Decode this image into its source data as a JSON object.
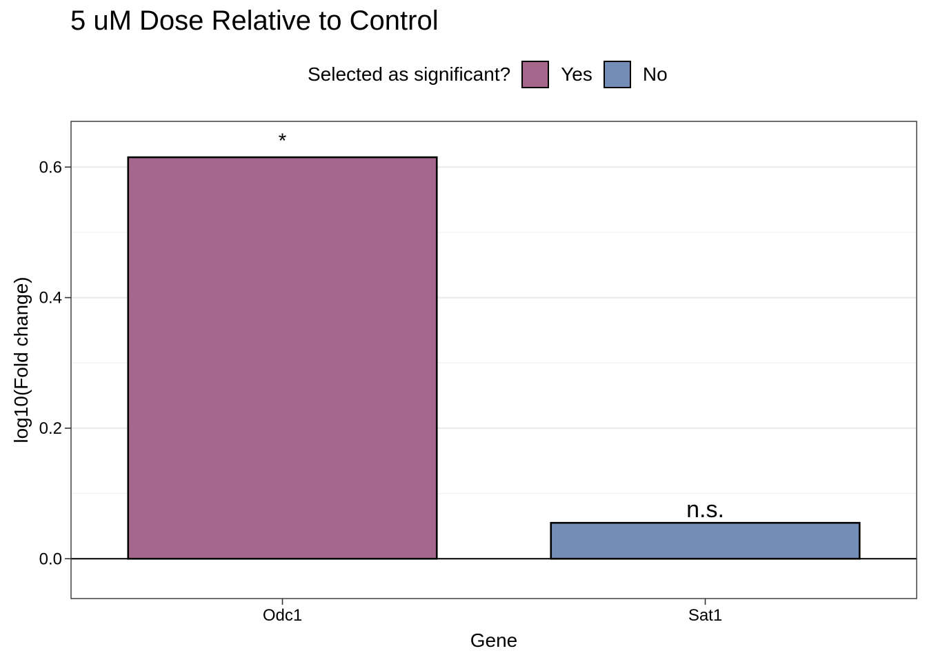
{
  "chart_data": {
    "type": "bar",
    "title": "5 uM Dose Relative to Control",
    "xlabel": "Gene",
    "ylabel": "log10(Fold change)",
    "categories": [
      "Odc1",
      "Sat1"
    ],
    "values": [
      0.615,
      0.055
    ],
    "significance_labels": [
      "*",
      "n.s."
    ],
    "bar_groups": [
      "Yes",
      "No"
    ],
    "ylim": [
      -0.061,
      0.67
    ],
    "yticks": [
      0.0,
      0.2,
      0.4,
      0.6
    ],
    "ytick_labels": [
      "0.0",
      "0.2",
      "0.4",
      "0.6"
    ],
    "grid": true,
    "legend": {
      "title": "Selected as significant?",
      "position": "top",
      "entries": [
        {
          "label": "Yes",
          "color": "#a5678b"
        },
        {
          "label": "No",
          "color": "#748db6"
        }
      ]
    }
  }
}
